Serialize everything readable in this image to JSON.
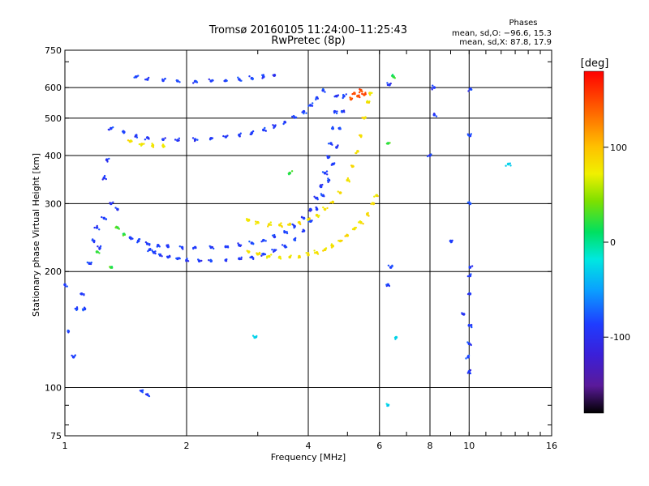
{
  "chart_data": {
    "type": "scatter",
    "title": "Tromsø 20160105 11:24:00–11:25:43",
    "subtitle": "RwPretec (8p)",
    "xlabel": "Frequency [MHz]",
    "ylabel": "Stationary phase Virtual Height [km]",
    "x_scale": "log",
    "y_scale": "log",
    "xlim": [
      1,
      16
    ],
    "ylim": [
      75,
      750
    ],
    "x_ticks": [
      1,
      2,
      4,
      6,
      8,
      10,
      16
    ],
    "y_ticks": [
      75,
      100,
      200,
      300,
      400,
      500,
      600,
      750
    ],
    "grid": true,
    "phase_stats": {
      "heading": "Phases",
      "line_o": "mean, sd,O: −96.6, 15.3",
      "line_x": "mean, sd,X:  87.8, 17.9"
    },
    "colorbar": {
      "label": "[deg]",
      "ticks": [
        100,
        0,
        -100
      ],
      "range": [
        -180,
        180
      ]
    },
    "series": [
      {
        "phase": -100,
        "points": [
          [
            1.62,
            228
          ],
          [
            1.66,
            224
          ],
          [
            1.72,
            221
          ],
          [
            1.8,
            218
          ],
          [
            1.9,
            216
          ],
          [
            2.0,
            214
          ],
          [
            2.15,
            213
          ],
          [
            2.3,
            213
          ],
          [
            2.5,
            214
          ],
          [
            2.7,
            216
          ],
          [
            2.9,
            218
          ],
          [
            3.1,
            222
          ],
          [
            3.3,
            227
          ],
          [
            3.5,
            233
          ],
          [
            3.7,
            242
          ],
          [
            3.9,
            255
          ],
          [
            4.05,
            270
          ],
          [
            4.2,
            290
          ],
          [
            4.35,
            315
          ],
          [
            4.5,
            345
          ],
          [
            4.6,
            380
          ],
          [
            4.7,
            420
          ],
          [
            4.78,
            470
          ],
          [
            4.85,
            520
          ],
          [
            4.9,
            570
          ]
        ]
      },
      {
        "phase": -100,
        "points": [
          [
            1.45,
            245
          ],
          [
            1.52,
            240
          ],
          [
            1.6,
            236
          ],
          [
            1.7,
            234
          ],
          [
            1.8,
            232
          ],
          [
            1.95,
            231
          ],
          [
            2.1,
            231
          ],
          [
            2.3,
            231
          ],
          [
            2.5,
            232
          ],
          [
            2.7,
            234
          ],
          [
            2.9,
            237
          ],
          [
            3.1,
            241
          ],
          [
            3.3,
            246
          ],
          [
            3.5,
            253
          ],
          [
            3.7,
            262
          ],
          [
            3.9,
            275
          ],
          [
            4.05,
            290
          ],
          [
            4.2,
            310
          ],
          [
            4.3,
            332
          ],
          [
            4.4,
            360
          ],
          [
            4.48,
            395
          ],
          [
            4.55,
            430
          ],
          [
            4.6,
            470
          ],
          [
            4.65,
            520
          ],
          [
            4.7,
            570
          ]
        ]
      },
      {
        "phase": -100,
        "points": [
          [
            1.3,
            470
          ],
          [
            1.4,
            460
          ],
          [
            1.5,
            450
          ],
          [
            1.6,
            445
          ],
          [
            1.75,
            440
          ],
          [
            1.9,
            438
          ],
          [
            2.1,
            440
          ],
          [
            2.3,
            443
          ],
          [
            2.5,
            447
          ],
          [
            2.7,
            452
          ],
          [
            2.9,
            458
          ],
          [
            3.1,
            466
          ],
          [
            3.3,
            476
          ],
          [
            3.5,
            488
          ],
          [
            3.7,
            502
          ],
          [
            3.9,
            520
          ],
          [
            4.05,
            540
          ],
          [
            4.2,
            565
          ],
          [
            4.35,
            590
          ]
        ]
      },
      {
        "phase": -100,
        "points": [
          [
            1.5,
            640
          ],
          [
            1.6,
            630
          ],
          [
            1.75,
            626
          ],
          [
            1.9,
            624
          ],
          [
            2.1,
            623
          ],
          [
            2.3,
            624
          ],
          [
            2.5,
            626
          ],
          [
            2.7,
            630
          ],
          [
            2.9,
            634
          ],
          [
            3.1,
            640
          ],
          [
            3.3,
            646
          ]
        ]
      },
      {
        "phase": 90,
        "points": [
          [
            2.85,
            225
          ],
          [
            3.0,
            222
          ],
          [
            3.2,
            219
          ],
          [
            3.4,
            218
          ],
          [
            3.6,
            218
          ],
          [
            3.8,
            219
          ],
          [
            4.0,
            221
          ],
          [
            4.2,
            224
          ],
          [
            4.4,
            228
          ],
          [
            4.6,
            233
          ],
          [
            4.8,
            240
          ],
          [
            5.0,
            248
          ],
          [
            5.2,
            258
          ],
          [
            5.4,
            268
          ],
          [
            5.6,
            282
          ],
          [
            5.8,
            300
          ],
          [
            5.9,
            315
          ]
        ]
      },
      {
        "phase": 90,
        "points": [
          [
            2.85,
            272
          ],
          [
            3.0,
            268
          ],
          [
            3.2,
            265
          ],
          [
            3.4,
            264
          ],
          [
            3.6,
            265
          ],
          [
            3.8,
            268
          ],
          [
            4.0,
            273
          ],
          [
            4.2,
            280
          ],
          [
            4.4,
            290
          ],
          [
            4.6,
            303
          ],
          [
            4.8,
            320
          ],
          [
            5.0,
            345
          ],
          [
            5.15,
            375
          ],
          [
            5.3,
            410
          ],
          [
            5.4,
            450
          ],
          [
            5.5,
            500
          ],
          [
            5.6,
            550
          ],
          [
            5.68,
            580
          ]
        ]
      },
      {
        "phase": 90,
        "points": [
          [
            1.45,
            435
          ],
          [
            1.55,
            428
          ],
          [
            1.65,
            425
          ],
          [
            1.75,
            424
          ]
        ]
      },
      {
        "phase": -100,
        "points": [
          [
            1.0,
            185
          ],
          [
            1.02,
            140
          ],
          [
            1.05,
            120
          ],
          [
            1.07,
            160
          ],
          [
            1.1,
            175
          ],
          [
            1.12,
            160
          ],
          [
            1.15,
            210
          ],
          [
            1.18,
            240
          ],
          [
            1.2,
            260
          ],
          [
            1.22,
            230
          ],
          [
            1.25,
            275
          ],
          [
            1.3,
            300
          ],
          [
            1.35,
            290
          ],
          [
            1.25,
            350
          ],
          [
            1.27,
            390
          ],
          [
            1.55,
            98
          ],
          [
            1.6,
            96
          ]
        ]
      },
      {
        "phase": -100,
        "points": [
          [
            6.3,
            185
          ],
          [
            6.35,
            610
          ],
          [
            6.4,
            205
          ],
          [
            8.2,
            600
          ],
          [
            8.2,
            510
          ],
          [
            9.7,
            155
          ],
          [
            9.95,
            120
          ],
          [
            10.0,
            110
          ],
          [
            10.0,
            130
          ],
          [
            10.0,
            145
          ],
          [
            10.05,
            175
          ],
          [
            10.05,
            195
          ],
          [
            10.05,
            205
          ],
          [
            10.05,
            300
          ],
          [
            10.05,
            450
          ],
          [
            10.05,
            595
          ],
          [
            8.0,
            400
          ],
          [
            9.0,
            240
          ]
        ]
      },
      {
        "phase": 150,
        "points": [
          [
            5.2,
            580
          ],
          [
            5.3,
            570
          ],
          [
            5.4,
            590
          ],
          [
            5.5,
            575
          ],
          [
            5.1,
            560
          ]
        ]
      },
      {
        "phase": 20,
        "points": [
          [
            1.35,
            260
          ],
          [
            1.4,
            250
          ],
          [
            1.2,
            225
          ],
          [
            6.3,
            430
          ],
          [
            6.5,
            640
          ],
          [
            1.3,
            205
          ],
          [
            3.6,
            360
          ]
        ]
      },
      {
        "phase": -30,
        "points": [
          [
            6.3,
            90
          ],
          [
            6.6,
            135
          ],
          [
            2.95,
            135
          ],
          [
            12.5,
            380
          ]
        ]
      }
    ]
  }
}
